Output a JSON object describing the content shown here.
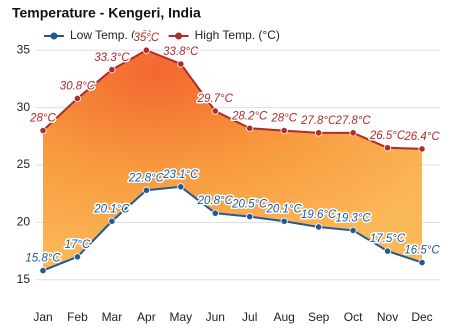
{
  "chart_data": {
    "type": "line",
    "title": "Temperature - Kengeri, India",
    "categories": [
      "Jan",
      "Feb",
      "Mar",
      "Apr",
      "May",
      "Jun",
      "Jul",
      "Aug",
      "Sep",
      "Oct",
      "Nov",
      "Dec"
    ],
    "series": [
      {
        "name": "Low Temp. (°C)",
        "color": "#1f5a96",
        "values": [
          15.8,
          17,
          20.1,
          22.8,
          23.1,
          20.8,
          20.5,
          20.1,
          19.6,
          19.3,
          17.5,
          16.5
        ],
        "value_labels": [
          "15.8°C",
          "17°C",
          "20.1°C",
          "22.8°C",
          "23.1°C",
          "20.8°C",
          "20.5°C",
          "20.1°C",
          "19.6°C",
          "19.3°C",
          "17.5°C",
          "16.5°C"
        ]
      },
      {
        "name": "High Temp. (°C)",
        "color": "#b22a2a",
        "values": [
          28,
          30.8,
          33.3,
          35,
          33.8,
          29.7,
          28.2,
          28,
          27.8,
          27.8,
          26.5,
          26.4
        ],
        "value_labels": [
          "28°C",
          "30.8°C",
          "33.3°C",
          "35°C",
          "33.8°C",
          "29.7°C",
          "28.2°C",
          "28°C",
          "27.8°C",
          "27.8°C",
          "26.5°C",
          "26.4°C"
        ]
      }
    ],
    "ylim": [
      13.5,
      36.5
    ],
    "yticks": [
      15,
      20,
      25,
      30,
      35
    ],
    "grid": true,
    "legend": "top"
  }
}
